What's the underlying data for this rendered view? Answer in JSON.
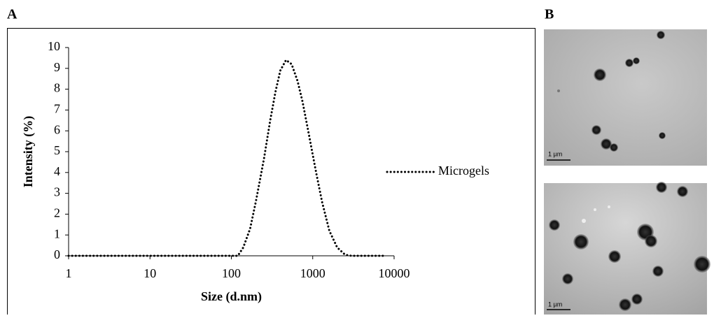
{
  "panel_a_label": "A",
  "panel_b_label": "B",
  "chart_data": {
    "type": "line",
    "x_label": "Size (d.nm)",
    "y_label": "Intensity (%)",
    "x": [
      1,
      2,
      5,
      10,
      20,
      50,
      100,
      120,
      140,
      170,
      200,
      250,
      300,
      350,
      400,
      470,
      550,
      650,
      750,
      900,
      1100,
      1300,
      1600,
      2000,
      2500,
      3000,
      5000,
      8000
    ],
    "series": [
      {
        "name": "Microgels",
        "color": "#000000",
        "values": [
          0,
          0,
          0,
          0,
          0,
          0,
          0,
          0,
          0.4,
          1.3,
          2.6,
          4.6,
          6.5,
          7.9,
          8.9,
          9.4,
          9.2,
          8.4,
          7.4,
          5.8,
          4.0,
          2.6,
          1.2,
          0.4,
          0.05,
          0,
          0,
          0
        ]
      }
    ],
    "xlim": [
      1,
      10000
    ],
    "ylim": [
      0,
      10
    ],
    "xticks": [
      1,
      10,
      100,
      1000,
      10000
    ],
    "yticks": [
      0,
      1,
      2,
      3,
      4,
      5,
      6,
      7,
      8,
      9,
      10
    ],
    "x_log": true,
    "legend": "right"
  },
  "scale_bars": [
    "1 µm",
    "1 µm"
  ]
}
